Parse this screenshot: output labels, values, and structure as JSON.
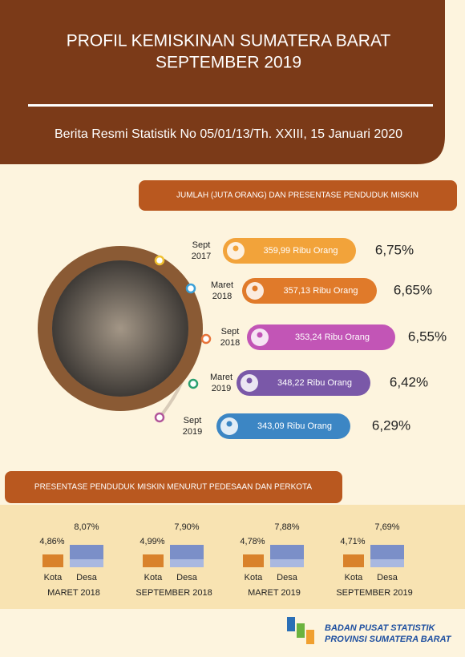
{
  "header": {
    "title_lines": [
      "PROFIL KEMISKINAN SUMATERA BARAT",
      "SEPTEMBER 2019"
    ],
    "subtitle": "Berita Resmi Statistik No 05/01/13/Th. XXIII, 15 Januari 2020"
  },
  "section1": {
    "heading": "JUMLAH (JUTA ORANG) DAN  PRESENTASE PENDUDUK MISKIN",
    "items": [
      {
        "period": [
          "Sept",
          "2017"
        ],
        "count": "359,99 Ribu Orang",
        "percent": "6,75%"
      },
      {
        "period": [
          "Maret",
          "2018"
        ],
        "count": "357,13 Ribu Orang",
        "percent": "6,65%"
      },
      {
        "period": [
          "Sept",
          "2018"
        ],
        "count": "353,24 Ribu Orang",
        "percent": "6,55%"
      },
      {
        "period": [
          "Maret",
          "2019"
        ],
        "count": "348,22 Ribu Orang",
        "percent": "6,42%"
      },
      {
        "period": [
          "Sept",
          "2019"
        ],
        "count": "343,09 Ribu Orang",
        "percent": "6,29%"
      }
    ]
  },
  "section2": {
    "heading": "PRESENTASE PENDUDUK MISKIN MENURUT PEDESAAN DAN PERKOTA",
    "groups": [
      {
        "kota": "4,86%",
        "desa": "8,07%",
        "kota_label": "Kota",
        "desa_label": "Desa",
        "period": "MARET 2018"
      },
      {
        "kota": "4,99%",
        "desa": "7,90%",
        "kota_label": "Kota",
        "desa_label": "Desa",
        "period": "SEPTEMBER 2018"
      },
      {
        "kota": "4,78%",
        "desa": "7,88%",
        "kota_label": "Kota",
        "desa_label": "Desa",
        "period": "MARET 2019"
      },
      {
        "kota": "4,71%",
        "desa": "7,69%",
        "kota_label": "Kota",
        "desa_label": "Desa",
        "period": "SEPTEMBER 2019"
      }
    ]
  },
  "footer": {
    "lines": [
      "BADAN PUSAT STATISTIK",
      "PROVINSI SUMATERA BARAT"
    ]
  }
}
